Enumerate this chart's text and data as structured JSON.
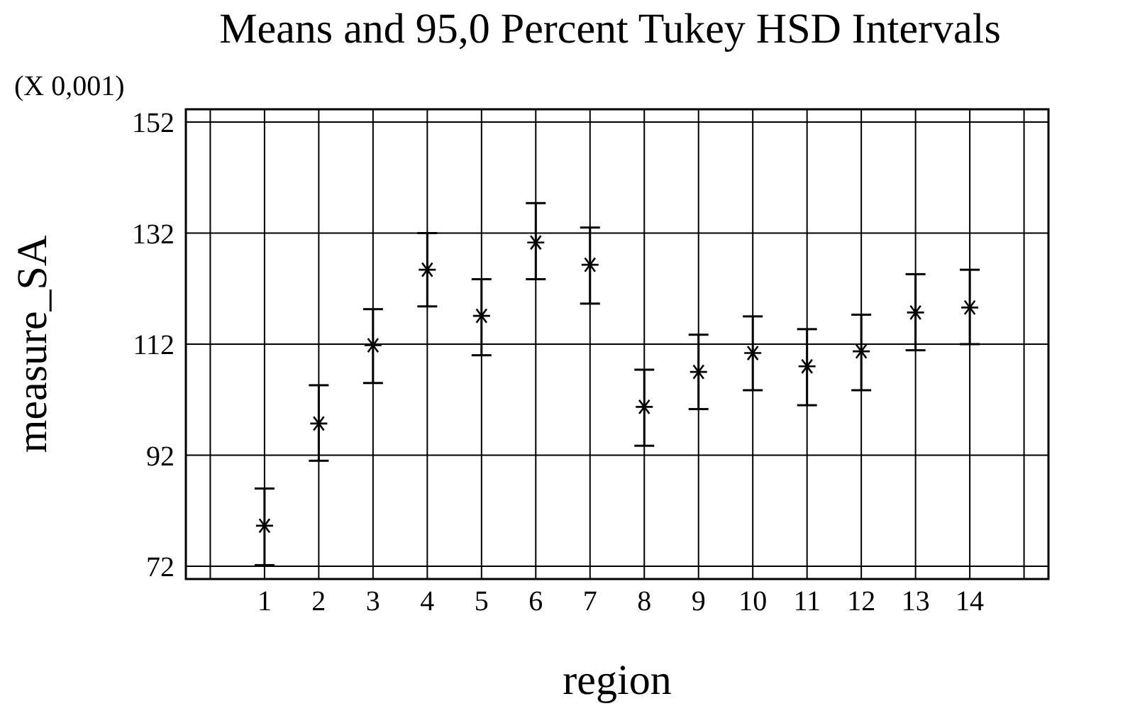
{
  "chart_data": {
    "type": "scatter",
    "title": "Means and 95,0 Percent Tukey HSD Intervals",
    "xlabel": "region",
    "ylabel": "measure_SA",
    "annotations": [
      "(X 0,001)"
    ],
    "x": [
      1,
      2,
      3,
      4,
      5,
      6,
      7,
      8,
      9,
      10,
      11,
      12,
      13,
      14
    ],
    "values": [
      79.3,
      97.7,
      111.8,
      125.4,
      117.1,
      130.3,
      126.3,
      100.7,
      107.0,
      110.4,
      108.0,
      110.7,
      117.7,
      118.6
    ],
    "errors": [
      [
        72.2,
        86.0
      ],
      [
        91.0,
        104.6
      ],
      [
        105.0,
        118.3
      ],
      [
        118.8,
        132.0
      ],
      [
        110.0,
        123.7
      ],
      [
        123.7,
        137.4
      ],
      [
        119.3,
        133.0
      ],
      [
        93.7,
        107.4
      ],
      [
        100.3,
        113.7
      ],
      [
        103.7,
        117.0
      ],
      [
        101.0,
        114.7
      ],
      [
        103.7,
        117.3
      ],
      [
        110.9,
        124.6
      ],
      [
        112.0,
        125.4
      ]
    ],
    "color": "#000000",
    "marker": "cross",
    "grid": true,
    "xlim": [
      -0.45,
      15.45
    ],
    "xticks": [
      {
        "value": 0,
        "label": null
      },
      1,
      2,
      3,
      4,
      5,
      6,
      7,
      8,
      9,
      10,
      11,
      12,
      13,
      14,
      {
        "value": 15,
        "label": null
      }
    ],
    "ylim": [
      69.7,
      154.3
    ],
    "yticks": [
      72,
      92,
      112,
      132,
      152
    ]
  }
}
